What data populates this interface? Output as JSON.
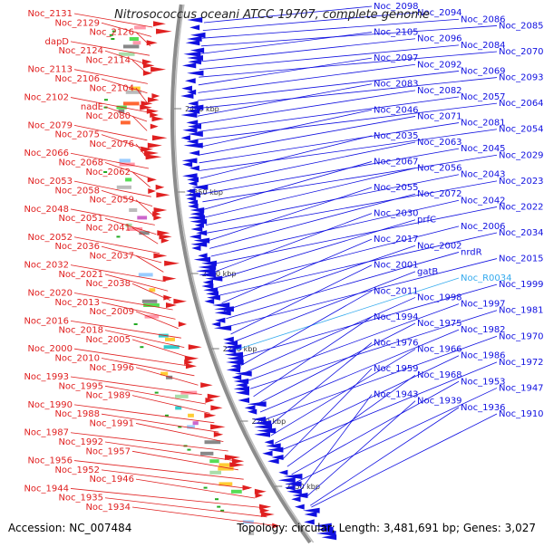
{
  "title": "Nitrosococcus oceani ATCC 19707, complete genome",
  "accession": "Accession: NC_007484",
  "topology": "Topology: circular; Length: 3,481,691 bp; Genes: 3,027",
  "colors": {
    "forward": "#e02020",
    "reverse": "#1010e0",
    "highlight": "#33aaee",
    "axis": "#888888",
    "gc": "#22aa22"
  },
  "ruler": [
    "2400 kbp",
    "2350 kbp",
    "2300 kbp",
    "2250 kbp",
    "2200 kbp",
    "2150 kbp"
  ],
  "left_labels": [
    "Noc_2131",
    "Noc_2129",
    "Noc_2126",
    "dapD",
    "Noc_2124",
    "Noc_2114",
    "Noc_2113",
    "Noc_2106",
    "Noc_2104",
    "Noc_2102",
    "nadE",
    "Noc_2080",
    "Noc_2079",
    "Noc_2075",
    "Noc_2076",
    "Noc_2066",
    "Noc_2068",
    "Noc_2062",
    "Noc_2053",
    "Noc_2058",
    "Noc_2059",
    "Noc_2048",
    "Noc_2051",
    "Noc_2041",
    "Noc_2052",
    "Noc_2036",
    "Noc_2037",
    "Noc_2032",
    "Noc_2021",
    "Noc_2038",
    "Noc_2020",
    "Noc_2013",
    "Noc_2009",
    "Noc_2016",
    "Noc_2018",
    "Noc_2005",
    "Noc_2000",
    "Noc_2010",
    "Noc_1996",
    "Noc_1993",
    "Noc_1995",
    "Noc_1989",
    "Noc_1990",
    "Noc_1988",
    "Noc_1991",
    "Noc_1987",
    "Noc_1992",
    "Noc_1957",
    "Noc_1956",
    "Noc_1952",
    "Noc_1946",
    "Noc_1944",
    "Noc_1935",
    "Noc_1934"
  ],
  "right_labels": [
    "Noc_2098",
    "Noc_2094",
    "Noc_2086",
    "Noc_2085",
    "Noc_2105",
    "Noc_2096",
    "Noc_2084",
    "Noc_2070",
    "Noc_2097",
    "Noc_2092",
    "Noc_2069",
    "Noc_2093",
    "Noc_2083",
    "Noc_2082",
    "Noc_2057",
    "Noc_2064",
    "Noc_2046",
    "Noc_2071",
    "Noc_2081",
    "Noc_2054",
    "Noc_2035",
    "Noc_2063",
    "Noc_2045",
    "Noc_2029",
    "Noc_2067",
    "Noc_2056",
    "Noc_2043",
    "Noc_2023",
    "Noc_2055",
    "Noc_2072",
    "Noc_2042",
    "Noc_2022",
    "Noc_2030",
    "prfC",
    "Noc_2006",
    "Noc_2034",
    "Noc_2017",
    "Noc_2002",
    "nrdR",
    "Noc_2015",
    "Noc_2001",
    "gatB",
    "Noc_R0034",
    "Noc_1999",
    "Noc_2011",
    "Noc_1998",
    "Noc_1997",
    "Noc_1981",
    "Noc_1994",
    "Noc_1975",
    "Noc_1982",
    "Noc_1970",
    "Noc_1976",
    "Noc_1966",
    "Noc_1986",
    "Noc_1972",
    "Noc_1959",
    "Noc_1968",
    "Noc_1953",
    "Noc_1947",
    "Noc_1943",
    "Noc_1939",
    "Noc_1936",
    "Noc_1910"
  ]
}
